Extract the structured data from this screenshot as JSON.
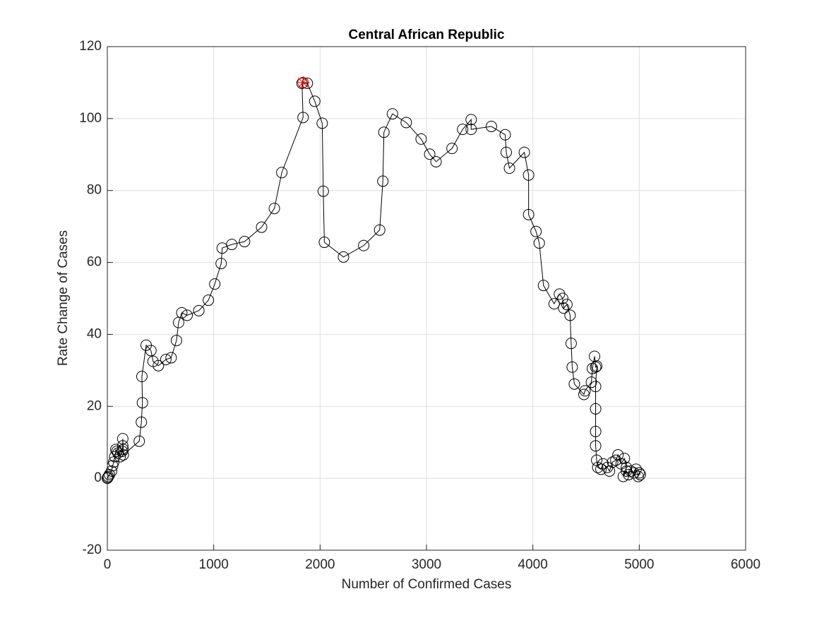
{
  "chart_data": {
    "type": "line",
    "title": "Central African Republic",
    "x_label": "Number of Confirmed Cases",
    "y_label": "Rate Change of Cases",
    "xlim": [
      0,
      6000
    ],
    "xticks": [
      0,
      1000,
      2000,
      3000,
      4000,
      5000,
      6000
    ],
    "ylim": [
      -20,
      120
    ],
    "yticks": [
      -20,
      0,
      20,
      40,
      60,
      80,
      100,
      120
    ],
    "grid": true,
    "color": "#000000",
    "x": [
      0,
      5,
      10,
      20,
      40,
      50,
      60,
      70,
      80,
      90,
      100,
      120,
      140,
      145,
      145,
      150,
      150,
      300,
      320,
      330,
      325,
      365,
      410,
      430,
      480,
      550,
      600,
      650,
      670,
      700,
      750,
      860,
      950,
      1010,
      1070,
      1080,
      1170,
      1290,
      1450,
      1570,
      1640,
      1840,
      1830,
      1880,
      1950,
      2020,
      2030,
      2040,
      2220,
      2410,
      2560,
      2590,
      2600,
      2680,
      2810,
      2950,
      3030,
      3090,
      3240,
      3340,
      3420,
      3420,
      3610,
      3740,
      3750,
      3780,
      3920,
      3960,
      3960,
      4030,
      4060,
      4100,
      4200,
      4250,
      4280,
      4290,
      4320,
      4350,
      4360,
      4370,
      4390,
      4480,
      4490,
      4550,
      4560,
      4580,
      4590,
      4600,
      4590,
      4590,
      4590,
      4590,
      4600,
      4610,
      4640,
      4660,
      4700,
      4720,
      4750,
      4780,
      4800,
      4830,
      4860,
      4880,
      4850,
      4880,
      4900,
      4920,
      4950,
      4970,
      4990,
      5000,
      5010
    ],
    "values": [
      0,
      0.2,
      0.5,
      1,
      2,
      3.5,
      4.5,
      6,
      8,
      7.5,
      7,
      6,
      7.5,
      9,
      11,
      8,
      6.5,
      10.3,
      15.6,
      21,
      28.3,
      37,
      35.5,
      32.5,
      31.3,
      33,
      33.5,
      38.3,
      43.3,
      46,
      45.3,
      46.6,
      49.5,
      54,
      59.7,
      64,
      65,
      65.8,
      69.8,
      75,
      85,
      100.3,
      109.8,
      109.8,
      104.8,
      98.7,
      79.8,
      65.6,
      61.5,
      64.7,
      69,
      82.6,
      96.2,
      101.3,
      98.9,
      94.3,
      90.1,
      88,
      91.7,
      97,
      99.7,
      97,
      97.8,
      95.5,
      90.6,
      86.2,
      90.6,
      84.3,
      73.3,
      68.6,
      65.4,
      53.6,
      48.5,
      51.2,
      50,
      47.3,
      48.3,
      45.3,
      37.5,
      30.9,
      26.2,
      23.3,
      24.3,
      26.7,
      30.5,
      33.9,
      30.9,
      31.2,
      25.5,
      19.3,
      13,
      9,
      5,
      3,
      2.5,
      4,
      3,
      2,
      4.5,
      5,
      6.5,
      4,
      5.5,
      3,
      0.5,
      2,
      1,
      2,
      1.5,
      2.5,
      0.5,
      1.5,
      1
    ],
    "highlight": {
      "x": 1840,
      "y": 110,
      "color": "#e00000"
    }
  }
}
